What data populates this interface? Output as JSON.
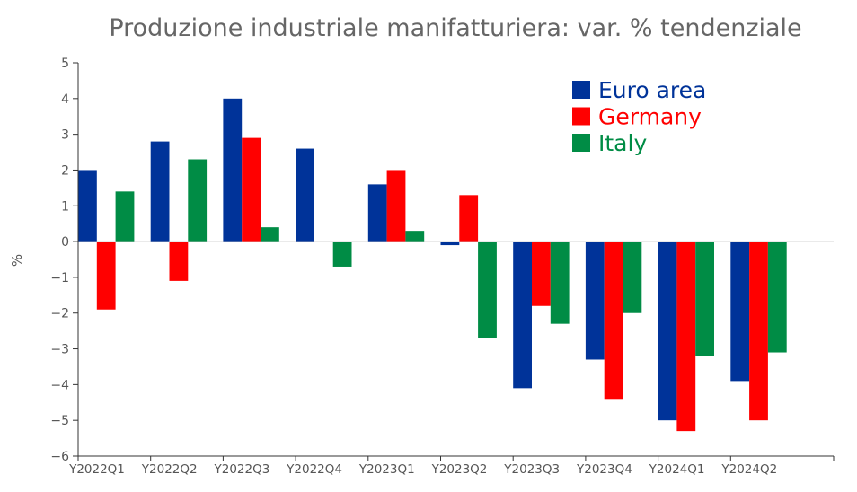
{
  "chart_data": {
    "type": "bar",
    "title": "Produzione industriale manifatturiera: var. % tendenziale",
    "xlabel": "",
    "ylabel": "%",
    "ylim": [
      -6,
      5
    ],
    "yticks": [
      5,
      4,
      3,
      2,
      1,
      0,
      -1,
      -2,
      -3,
      -4,
      -5,
      -6
    ],
    "ytick_labels": [
      "5",
      "4",
      "3",
      "2",
      "1",
      "0",
      "−1",
      "−2",
      "−3",
      "−4",
      "−5",
      "−6"
    ],
    "categories": [
      "Y2022Q1",
      "Y2022Q2",
      "Y2022Q3",
      "Y2022Q4",
      "Y2023Q1",
      "Y2023Q2",
      "Y2023Q3",
      "Y2023Q4",
      "Y2024Q1",
      "Y2024Q2"
    ],
    "series": [
      {
        "name": "Euro area",
        "color": "#003399",
        "values": [
          2.0,
          2.8,
          4.0,
          2.6,
          1.6,
          -0.1,
          -4.1,
          -3.3,
          -5.0,
          -3.9
        ]
      },
      {
        "name": "Germany",
        "color": "#ff0000",
        "values": [
          -1.9,
          -1.1,
          2.9,
          null,
          2.0,
          1.3,
          -1.8,
          -4.4,
          -5.3,
          -5.0
        ]
      },
      {
        "name": "Italy",
        "color": "#008c45",
        "values": [
          1.4,
          2.3,
          0.4,
          -0.7,
          0.3,
          -2.7,
          -2.3,
          -2.0,
          -3.2,
          -3.1
        ]
      }
    ],
    "grid": false,
    "legend_position": "top-right"
  }
}
